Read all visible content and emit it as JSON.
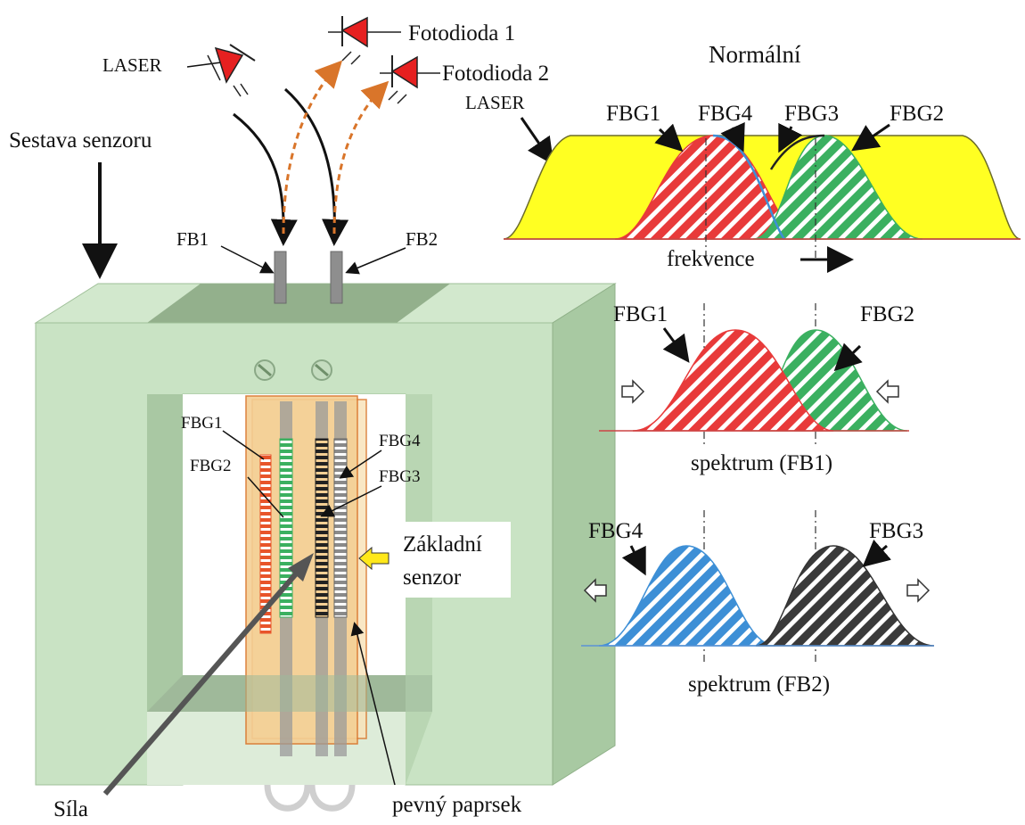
{
  "labels": {
    "laser": "LASER",
    "photodiode1": "Fotodioda 1",
    "photodiode2": "Fotodioda 2",
    "sensor_assembly": "Sestava senzoru",
    "fb1": "FB1",
    "fb2": "FB2",
    "fbg1": "FBG1",
    "fbg2": "FBG2",
    "fbg3": "FBG3",
    "fbg4": "FBG4",
    "base_sensor_line1": "Základní",
    "base_sensor_line2": "senzor",
    "force": "Síla",
    "rigid_beam": "pevný paprsek"
  },
  "spectra": {
    "normal": {
      "title": "Normální",
      "laser": "LASER",
      "fbg1": "FBG1",
      "fbg4": "FBG4",
      "fbg3": "FBG3",
      "fbg2": "FBG2",
      "axis": "frekvence"
    },
    "fb1": {
      "fbg1": "FBG1",
      "fbg2": "FBG2",
      "caption": "spektrum (FB1)"
    },
    "fb2": {
      "fbg4": "FBG4",
      "fbg3": "FBG3",
      "caption": "spektrum (FB2)"
    }
  },
  "colors": {
    "frame": "#c9e3c4",
    "frame_side": "#a8c9a2",
    "top_band": "#93b08c",
    "sensor_plate": "#f4cf94",
    "laser_band": "#ffff22",
    "fbg1_red": "#e83a3a",
    "fbg2_green": "#3bb060",
    "fbg3_black": "#3a3a3a",
    "fbg4_blue": "#3d8fd6",
    "photodiode": "#e62020",
    "dashed_path": "#d9752a",
    "yellow_arrow": "#ffe81a"
  }
}
